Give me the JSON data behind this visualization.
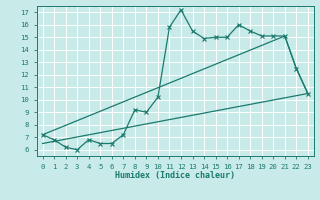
{
  "xlabel": "Humidex (Indice chaleur)",
  "xlim": [
    -0.5,
    23.5
  ],
  "ylim": [
    5.5,
    17.5
  ],
  "xticks": [
    0,
    1,
    2,
    3,
    4,
    5,
    6,
    7,
    8,
    9,
    10,
    11,
    12,
    13,
    14,
    15,
    16,
    17,
    18,
    19,
    20,
    21,
    22,
    23
  ],
  "yticks": [
    6,
    7,
    8,
    9,
    10,
    11,
    12,
    13,
    14,
    15,
    16,
    17
  ],
  "bg_color": "#c8eae8",
  "grid_color": "#ffffff",
  "line_color": "#1a7a6e",
  "line1_x": [
    0,
    1,
    2,
    3,
    4,
    5,
    6,
    7,
    8,
    9,
    10,
    11,
    12,
    13,
    14,
    15,
    16,
    17,
    18,
    19,
    20,
    21,
    22,
    23
  ],
  "line1_y": [
    7.2,
    6.8,
    6.2,
    6.0,
    6.8,
    6.5,
    6.5,
    7.2,
    9.2,
    9.0,
    10.2,
    15.8,
    17.2,
    15.5,
    14.9,
    15.0,
    15.0,
    16.0,
    15.5,
    15.1,
    15.1,
    15.1,
    12.5,
    10.5
  ],
  "line2_x": [
    0,
    21,
    22,
    23
  ],
  "line2_y": [
    7.2,
    15.1,
    12.5,
    10.5
  ],
  "line3_x": [
    0,
    23
  ],
  "line3_y": [
    6.5,
    10.5
  ]
}
